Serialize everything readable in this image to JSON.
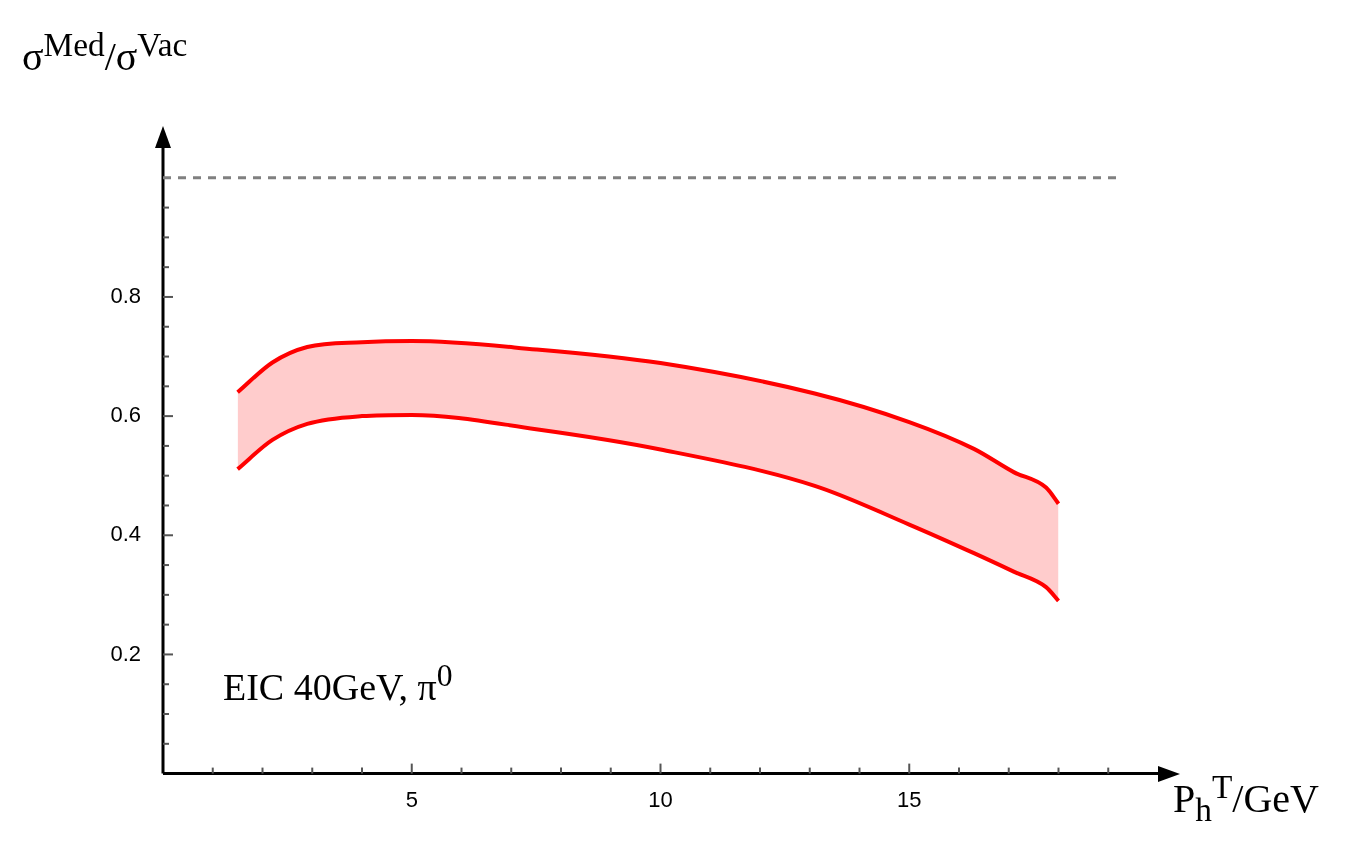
{
  "chart_data": {
    "type": "line",
    "xlabel": "P$_{h}$$^{T}$/GeV",
    "ylabel": "σ$^{Med}$/σ$^{Vac}$",
    "x": [
      1.5,
      2.2,
      2.9,
      4,
      5,
      7.5,
      10,
      13.1,
      15,
      16.3,
      17.1,
      17.75,
      18
    ],
    "series": [
      {
        "color": "#ff0000",
        "values": [
          0.64,
          0.69,
          0.716,
          0.724,
          0.726,
          0.712,
          0.689,
          0.638,
          0.59,
          0.545,
          0.506,
          0.48,
          0.453
        ],
        "upper": [
          0.64,
          0.69,
          0.716,
          0.724,
          0.726,
          0.712,
          0.689,
          0.638,
          0.59,
          0.545,
          0.506,
          0.48,
          0.453
        ],
        "lower": [
          0.511,
          0.56,
          0.587,
          0.6,
          0.602,
          0.578,
          0.544,
          0.483,
          0.418,
          0.37,
          0.339,
          0.313,
          0.29
        ]
      },
      {
        "color": "#ff0000",
        "values": [
          0.511,
          0.56,
          0.587,
          0.6,
          0.602,
          0.578,
          0.544,
          0.483,
          0.418,
          0.37,
          0.339,
          0.313,
          0.29
        ]
      }
    ],
    "xlim": [
      0,
      20
    ],
    "ylim": [
      0,
      1.05
    ],
    "xticks": [
      {
        "value": 1,
        "label": null
      },
      {
        "value": 2,
        "label": null
      },
      {
        "value": 3,
        "label": null
      },
      {
        "value": 4,
        "label": null
      },
      5,
      {
        "value": 6,
        "label": null
      },
      {
        "value": 7,
        "label": null
      },
      {
        "value": 8,
        "label": null
      },
      {
        "value": 9,
        "label": null
      },
      10,
      {
        "value": 11,
        "label": null
      },
      {
        "value": 12,
        "label": null
      },
      {
        "value": 13,
        "label": null
      },
      {
        "value": 14,
        "label": null
      },
      15,
      {
        "value": 16,
        "label": null
      },
      {
        "value": 17,
        "label": null
      },
      {
        "value": 18,
        "label": null
      },
      {
        "value": 19,
        "label": null
      }
    ],
    "yticks": [
      {
        "value": 0.05,
        "label": null
      },
      {
        "value": 0.1,
        "label": null
      },
      {
        "value": 0.15,
        "label": null
      },
      0.2,
      {
        "value": 0.25,
        "label": null
      },
      {
        "value": 0.3,
        "label": null
      },
      {
        "value": 0.35,
        "label": null
      },
      0.4,
      {
        "value": 0.45,
        "label": null
      },
      {
        "value": 0.5,
        "label": null
      },
      {
        "value": 0.55,
        "label": null
      },
      0.6,
      {
        "value": 0.65,
        "label": null
      },
      {
        "value": 0.7,
        "label": null
      },
      {
        "value": 0.75,
        "label": null
      },
      0.8,
      {
        "value": 0.85,
        "label": null
      },
      {
        "value": 0.9,
        "label": null
      },
      {
        "value": 0.95,
        "label": null
      }
    ],
    "ref_lines": [
      {
        "axis": "y",
        "value": 1,
        "color": "#808080",
        "line_style": "dashed"
      }
    ],
    "annotations": [
      "EIC 40GeV, π$^{0}$"
    ],
    "grid": false,
    "legend": false,
    "marker": "none",
    "line_style": "solid"
  }
}
